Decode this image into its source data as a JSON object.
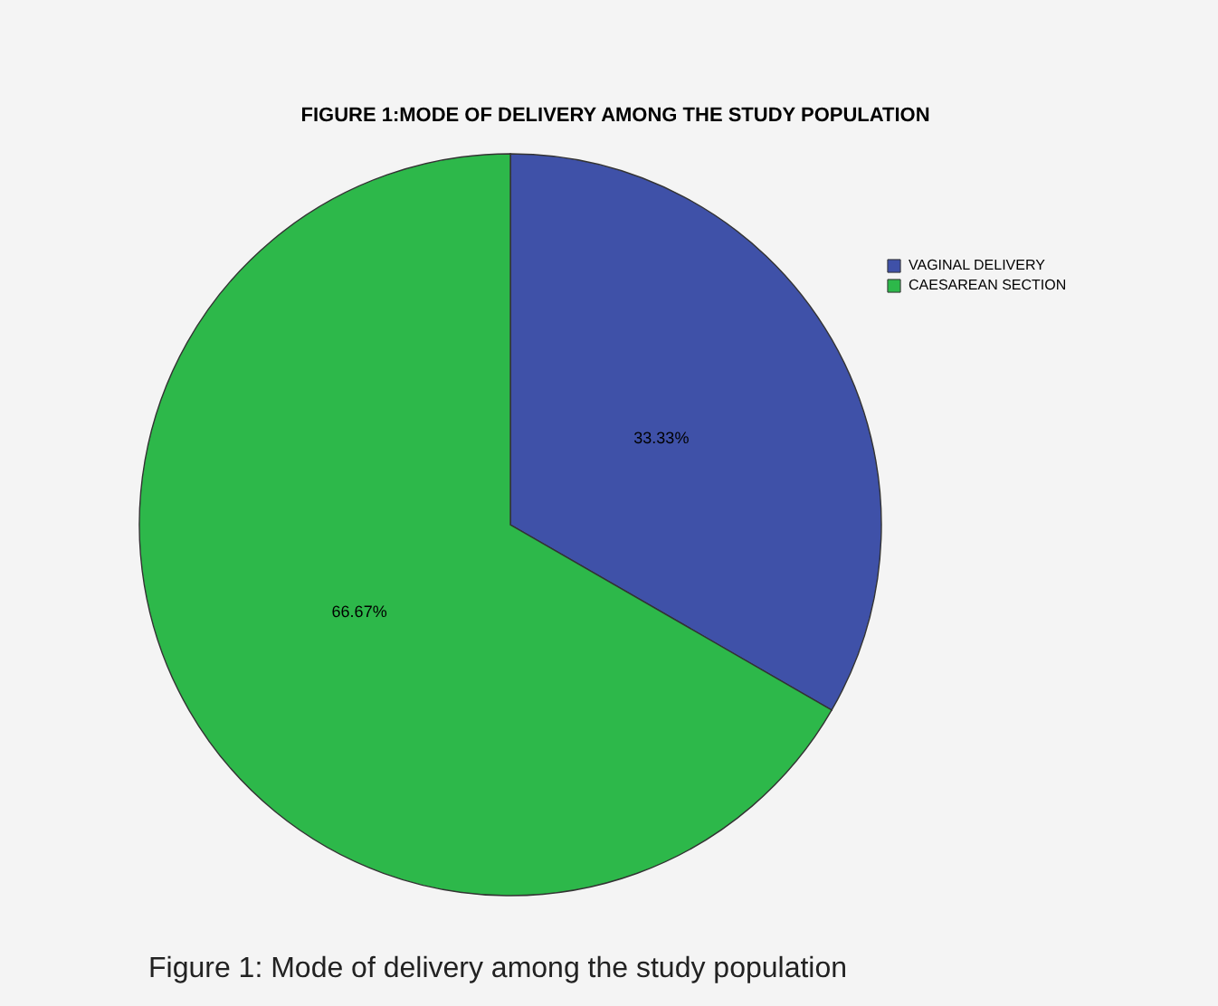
{
  "chart_data": {
    "type": "pie",
    "title": "FIGURE 1:MODE OF DELIVERY AMONG THE STUDY POPULATION",
    "categories": [
      "VAGINAL DELIVERY",
      "CAESAREAN SECTION"
    ],
    "values": [
      33.33,
      66.67
    ],
    "colors": [
      "#3f51a8",
      "#2db84a"
    ],
    "value_labels": [
      "33.33%",
      "66.67%"
    ],
    "legend": "top right",
    "annotations": [
      "Figure 1: Mode of delivery among the study population"
    ]
  }
}
